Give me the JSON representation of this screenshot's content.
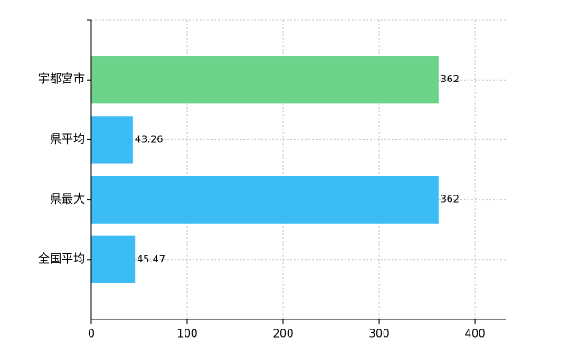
{
  "chart_data": {
    "type": "barh",
    "categories": [
      "宇都宮市",
      "県平均",
      "県最大",
      "全国平均"
    ],
    "values": [
      362,
      43.26,
      362,
      45.47
    ],
    "colors": [
      "#6cd38b",
      "#3bbcf5",
      "#3bbcf5",
      "#3bbcf5"
    ],
    "xlim": [
      0,
      432
    ],
    "xticks": [
      0,
      100,
      200,
      300,
      400
    ],
    "grid": true
  }
}
